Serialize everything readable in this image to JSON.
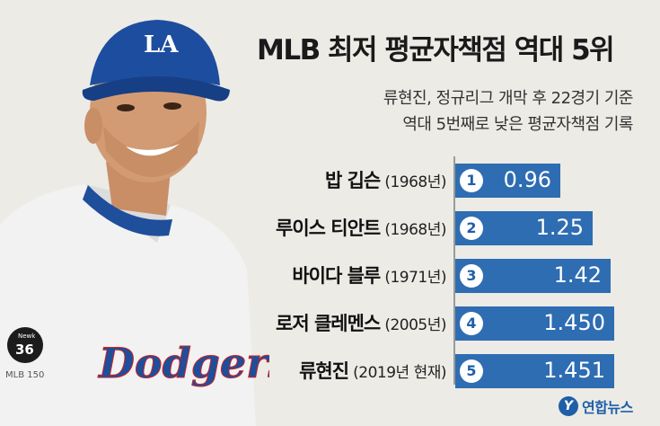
{
  "title": "MLB 최저 평균자책점 역대 5위",
  "subtitle_lines": [
    "류현진,  정규리그 개막 후 22경기 기준",
    "역대 5번째로 낮은 평균자책점 기록"
  ],
  "colors": {
    "bar": "#2e6db2",
    "background": "#ecebe6",
    "badge_text": "#1f5fa8"
  },
  "photo": {
    "cap_logo": "LA",
    "jersey_text": "Dodgers",
    "patch_text": "36",
    "patch_label": "Newk",
    "sleeve_text": "MLB 150"
  },
  "credit": {
    "mark": "Y",
    "text": "연합뉴스"
  },
  "chart_data": {
    "type": "bar",
    "orientation": "horizontal",
    "title": "MLB 최저 평균자책점 역대 5위",
    "xlabel": "",
    "ylabel": "",
    "xlim": [
      0,
      1.5
    ],
    "categories": [
      "밥 깁슨 (1968년)",
      "루이스 티안트 (1968년)",
      "바이다 블루 (1971년)",
      "로저 클레멘스 (2005년)",
      "류현진 (2019년 현재)"
    ],
    "values": [
      0.96,
      1.25,
      1.42,
      1.45,
      1.451
    ],
    "rows": [
      {
        "rank": "1",
        "name": "밥 깁슨",
        "year": "(1968년)",
        "value": 0.96,
        "label": "0.96"
      },
      {
        "rank": "2",
        "name": "루이스 티안트",
        "year": "(1968년)",
        "value": 1.25,
        "label": "1.25"
      },
      {
        "rank": "3",
        "name": "바이다 블루",
        "year": "(1971년)",
        "value": 1.42,
        "label": "1.42"
      },
      {
        "rank": "4",
        "name": "로저 클레멘스",
        "year": "(2005년)",
        "value": 1.45,
        "label": "1.450"
      },
      {
        "rank": "5",
        "name": "류현진",
        "year": "(2019년 현재)",
        "value": 1.451,
        "label": "1.451"
      }
    ]
  }
}
